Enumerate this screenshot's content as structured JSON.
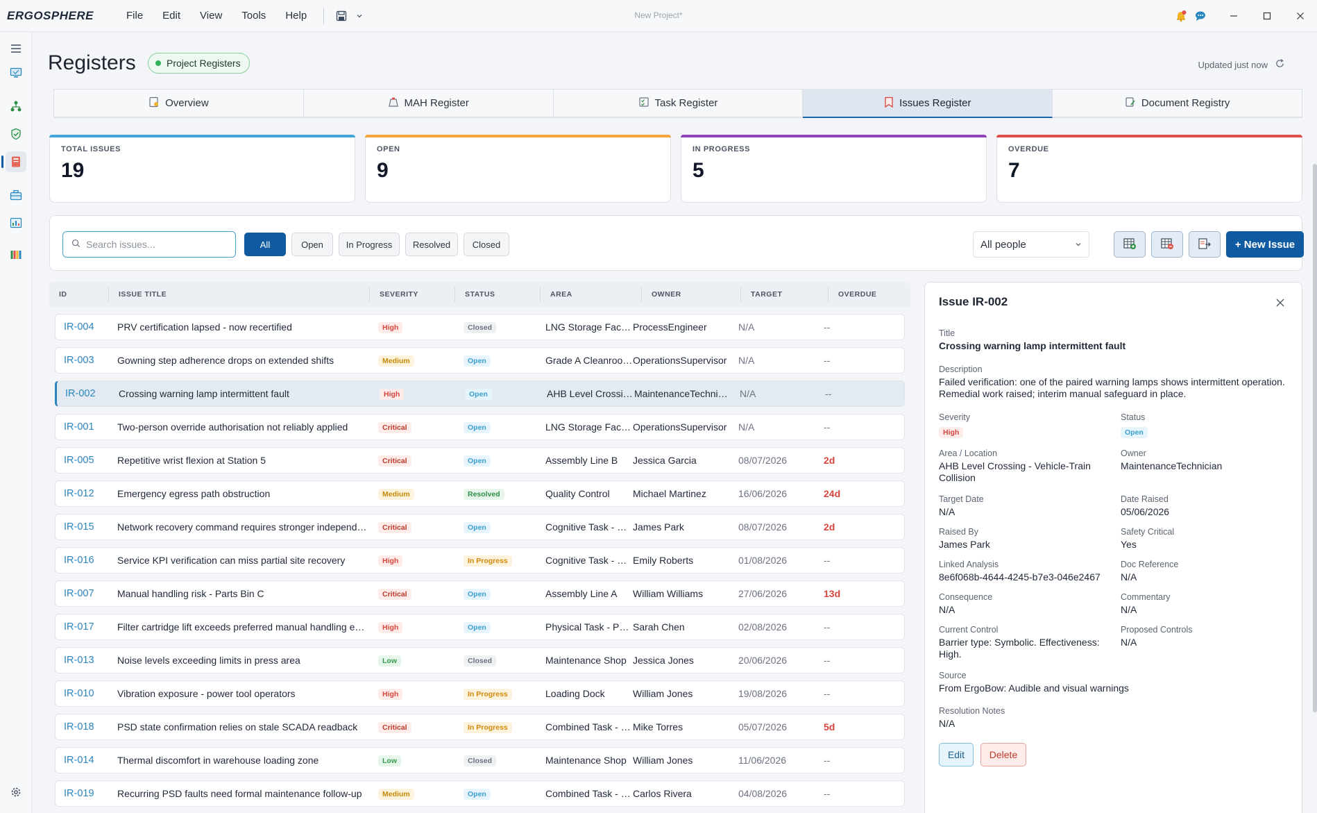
{
  "app": {
    "logo": "ERGOSPHERE",
    "window_title": "New Project*",
    "menu": [
      "File",
      "Edit",
      "View",
      "Tools",
      "Help"
    ]
  },
  "header": {
    "title": "Registers",
    "badge": "Project Registers",
    "updated": "Updated just now"
  },
  "tabs": [
    {
      "label": "Overview",
      "icon": "overview-icon"
    },
    {
      "label": "MAH Register",
      "icon": "mah-icon"
    },
    {
      "label": "Task Register",
      "icon": "task-icon"
    },
    {
      "label": "Issues Register",
      "icon": "bookmark-icon",
      "active": true
    },
    {
      "label": "Document Registry",
      "icon": "document-icon"
    }
  ],
  "stats": [
    {
      "label": "TOTAL ISSUES",
      "value": "19",
      "color": "#42a5d9"
    },
    {
      "label": "OPEN",
      "value": "9",
      "color": "#f2a33b"
    },
    {
      "label": "IN PROGRESS",
      "value": "5",
      "color": "#8e44b8"
    },
    {
      "label": "OVERDUE",
      "value": "7",
      "color": "#e0504a"
    }
  ],
  "filters": {
    "search_placeholder": "Search issues...",
    "buttons": [
      "All",
      "Open",
      "In Progress",
      "Resolved",
      "Closed"
    ],
    "active": "All",
    "people_select": "All people",
    "new_issue": "+ New Issue"
  },
  "table": {
    "columns": [
      "ID",
      "ISSUE TITLE",
      "SEVERITY",
      "STATUS",
      "AREA",
      "OWNER",
      "TARGET",
      "OVERDUE"
    ],
    "rows": [
      {
        "id": "IR-004",
        "title": "PRV certification lapsed - now recertified",
        "severity": "High",
        "status": "Closed",
        "area": "LNG Storage Facility...",
        "owner": "ProcessEngineer",
        "target": "N/A",
        "overdue": "--"
      },
      {
        "id": "IR-003",
        "title": "Gowning step adherence drops on extended shifts",
        "severity": "Medium",
        "status": "Open",
        "area": "Grade A Cleanroom -...",
        "owner": "OperationsSupervisor",
        "target": "N/A",
        "overdue": "--"
      },
      {
        "id": "IR-002",
        "title": "Crossing warning lamp intermittent fault",
        "severity": "High",
        "status": "Open",
        "area": "AHB Level Crossing -...",
        "owner": "MaintenanceTechnici...",
        "target": "N/A",
        "overdue": "--",
        "selected": true
      },
      {
        "id": "IR-001",
        "title": "Two-person override authorisation not reliably applied",
        "severity": "Critical",
        "status": "Open",
        "area": "LNG Storage Facility...",
        "owner": "OperationsSupervisor",
        "target": "N/A",
        "overdue": "--"
      },
      {
        "id": "IR-005",
        "title": "Repetitive wrist flexion at Station 5",
        "severity": "Critical",
        "status": "Open",
        "area": "Assembly Line B",
        "owner": "Jessica Garcia",
        "target": "08/07/2026",
        "overdue": "2d"
      },
      {
        "id": "IR-012",
        "title": "Emergency egress path obstruction",
        "severity": "Medium",
        "status": "Resolved",
        "area": "Quality Control",
        "owner": "Michael Martinez",
        "target": "16/06/2026",
        "overdue": "24d"
      },
      {
        "id": "IR-015",
        "title": "Network recovery command requires stronger independent...",
        "severity": "Critical",
        "status": "Open",
        "area": "Cognitive Task - Net...",
        "owner": "James Park",
        "target": "08/07/2026",
        "overdue": "2d"
      },
      {
        "id": "IR-016",
        "title": "Service KPI verification can miss partial site recovery",
        "severity": "High",
        "status": "In Progress",
        "area": "Cognitive Task - Net...",
        "owner": "Emily Roberts",
        "target": "01/08/2026",
        "overdue": "--"
      },
      {
        "id": "IR-007",
        "title": "Manual handling risk - Parts Bin C",
        "severity": "Critical",
        "status": "Open",
        "area": "Assembly Line A",
        "owner": "William Williams",
        "target": "27/06/2026",
        "overdue": "13d"
      },
      {
        "id": "IR-017",
        "title": "Filter cartridge lift exceeds preferred manual handling envel...",
        "severity": "High",
        "status": "Open",
        "area": "Physical Task - Pump...",
        "owner": "Sarah Chen",
        "target": "02/08/2026",
        "overdue": "--"
      },
      {
        "id": "IR-013",
        "title": "Noise levels exceeding limits in press area",
        "severity": "Low",
        "status": "Closed",
        "area": "Maintenance Shop",
        "owner": "Jessica Jones",
        "target": "20/06/2026",
        "overdue": "--"
      },
      {
        "id": "IR-010",
        "title": "Vibration exposure - power tool operators",
        "severity": "High",
        "status": "In Progress",
        "area": "Loading Dock",
        "owner": "William Jones",
        "target": "19/08/2026",
        "overdue": "--"
      },
      {
        "id": "IR-018",
        "title": "PSD state confirmation relies on stale SCADA readback",
        "severity": "Critical",
        "status": "In Progress",
        "area": "Combined Task - Rail...",
        "owner": "Mike Torres",
        "target": "05/07/2026",
        "overdue": "5d"
      },
      {
        "id": "IR-014",
        "title": "Thermal discomfort in warehouse loading zone",
        "severity": "Low",
        "status": "Closed",
        "area": "Maintenance Shop",
        "owner": "William Jones",
        "target": "11/06/2026",
        "overdue": "--"
      },
      {
        "id": "IR-019",
        "title": "Recurring PSD faults need formal maintenance follow-up",
        "severity": "Medium",
        "status": "Open",
        "area": "Combined Task - Rail...",
        "owner": "Carlos Rivera",
        "target": "04/08/2026",
        "overdue": "--"
      }
    ]
  },
  "detail": {
    "heading": "Issue IR-002",
    "title_label": "Title",
    "title": "Crossing warning lamp intermittent fault",
    "description_label": "Description",
    "description": "Failed verification: one of the paired warning lamps shows intermittent operation. Remedial work raised; interim manual safeguard in place.",
    "severity_label": "Severity",
    "severity": "High",
    "status_label": "Status",
    "status": "Open",
    "area_label": "Area / Location",
    "area": "AHB Level Crossing - Vehicle-Train Collision",
    "owner_label": "Owner",
    "owner": "MaintenanceTechnician",
    "target_label": "Target Date",
    "target": "N/A",
    "raised_label": "Date Raised",
    "raised": "05/06/2026",
    "raised_by_label": "Raised By",
    "raised_by": "James Park",
    "safety_label": "Safety Critical",
    "safety": "Yes",
    "linked_label": "Linked Analysis",
    "linked": "8e6f068b-4644-4245-b7e3-046e2467",
    "docref_label": "Doc Reference",
    "docref": "N/A",
    "consequence_label": "Consequence",
    "consequence": "N/A",
    "commentary_label": "Commentary",
    "commentary": "N/A",
    "current_label": "Current Control",
    "current": "Barrier type: Symbolic. Effectiveness: High.",
    "proposed_label": "Proposed Controls",
    "proposed": "N/A",
    "source_label": "Source",
    "source": "From ErgoBow: Audible and visual warnings",
    "resolution_label": "Resolution Notes",
    "resolution": "N/A",
    "edit": "Edit",
    "delete": "Delete"
  }
}
